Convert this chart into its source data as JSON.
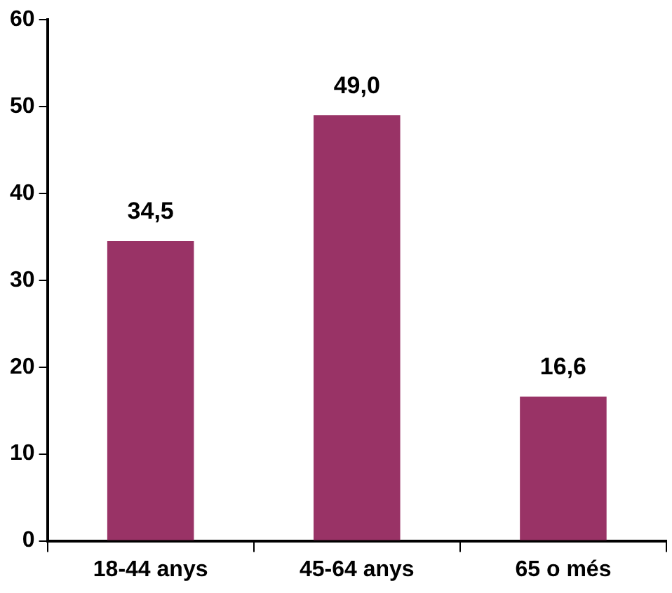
{
  "chart_data": {
    "type": "bar",
    "categories": [
      "18-44 anys",
      "45-64 anys",
      "65 o més"
    ],
    "values": [
      34.5,
      49.0,
      16.6
    ],
    "value_labels": [
      "34,5",
      "49,0",
      "16,6"
    ],
    "color": "#993366",
    "ylim": [
      0,
      60
    ],
    "yticks": [
      0,
      10,
      20,
      30,
      40,
      50,
      60
    ],
    "grid": false,
    "legend": false
  }
}
